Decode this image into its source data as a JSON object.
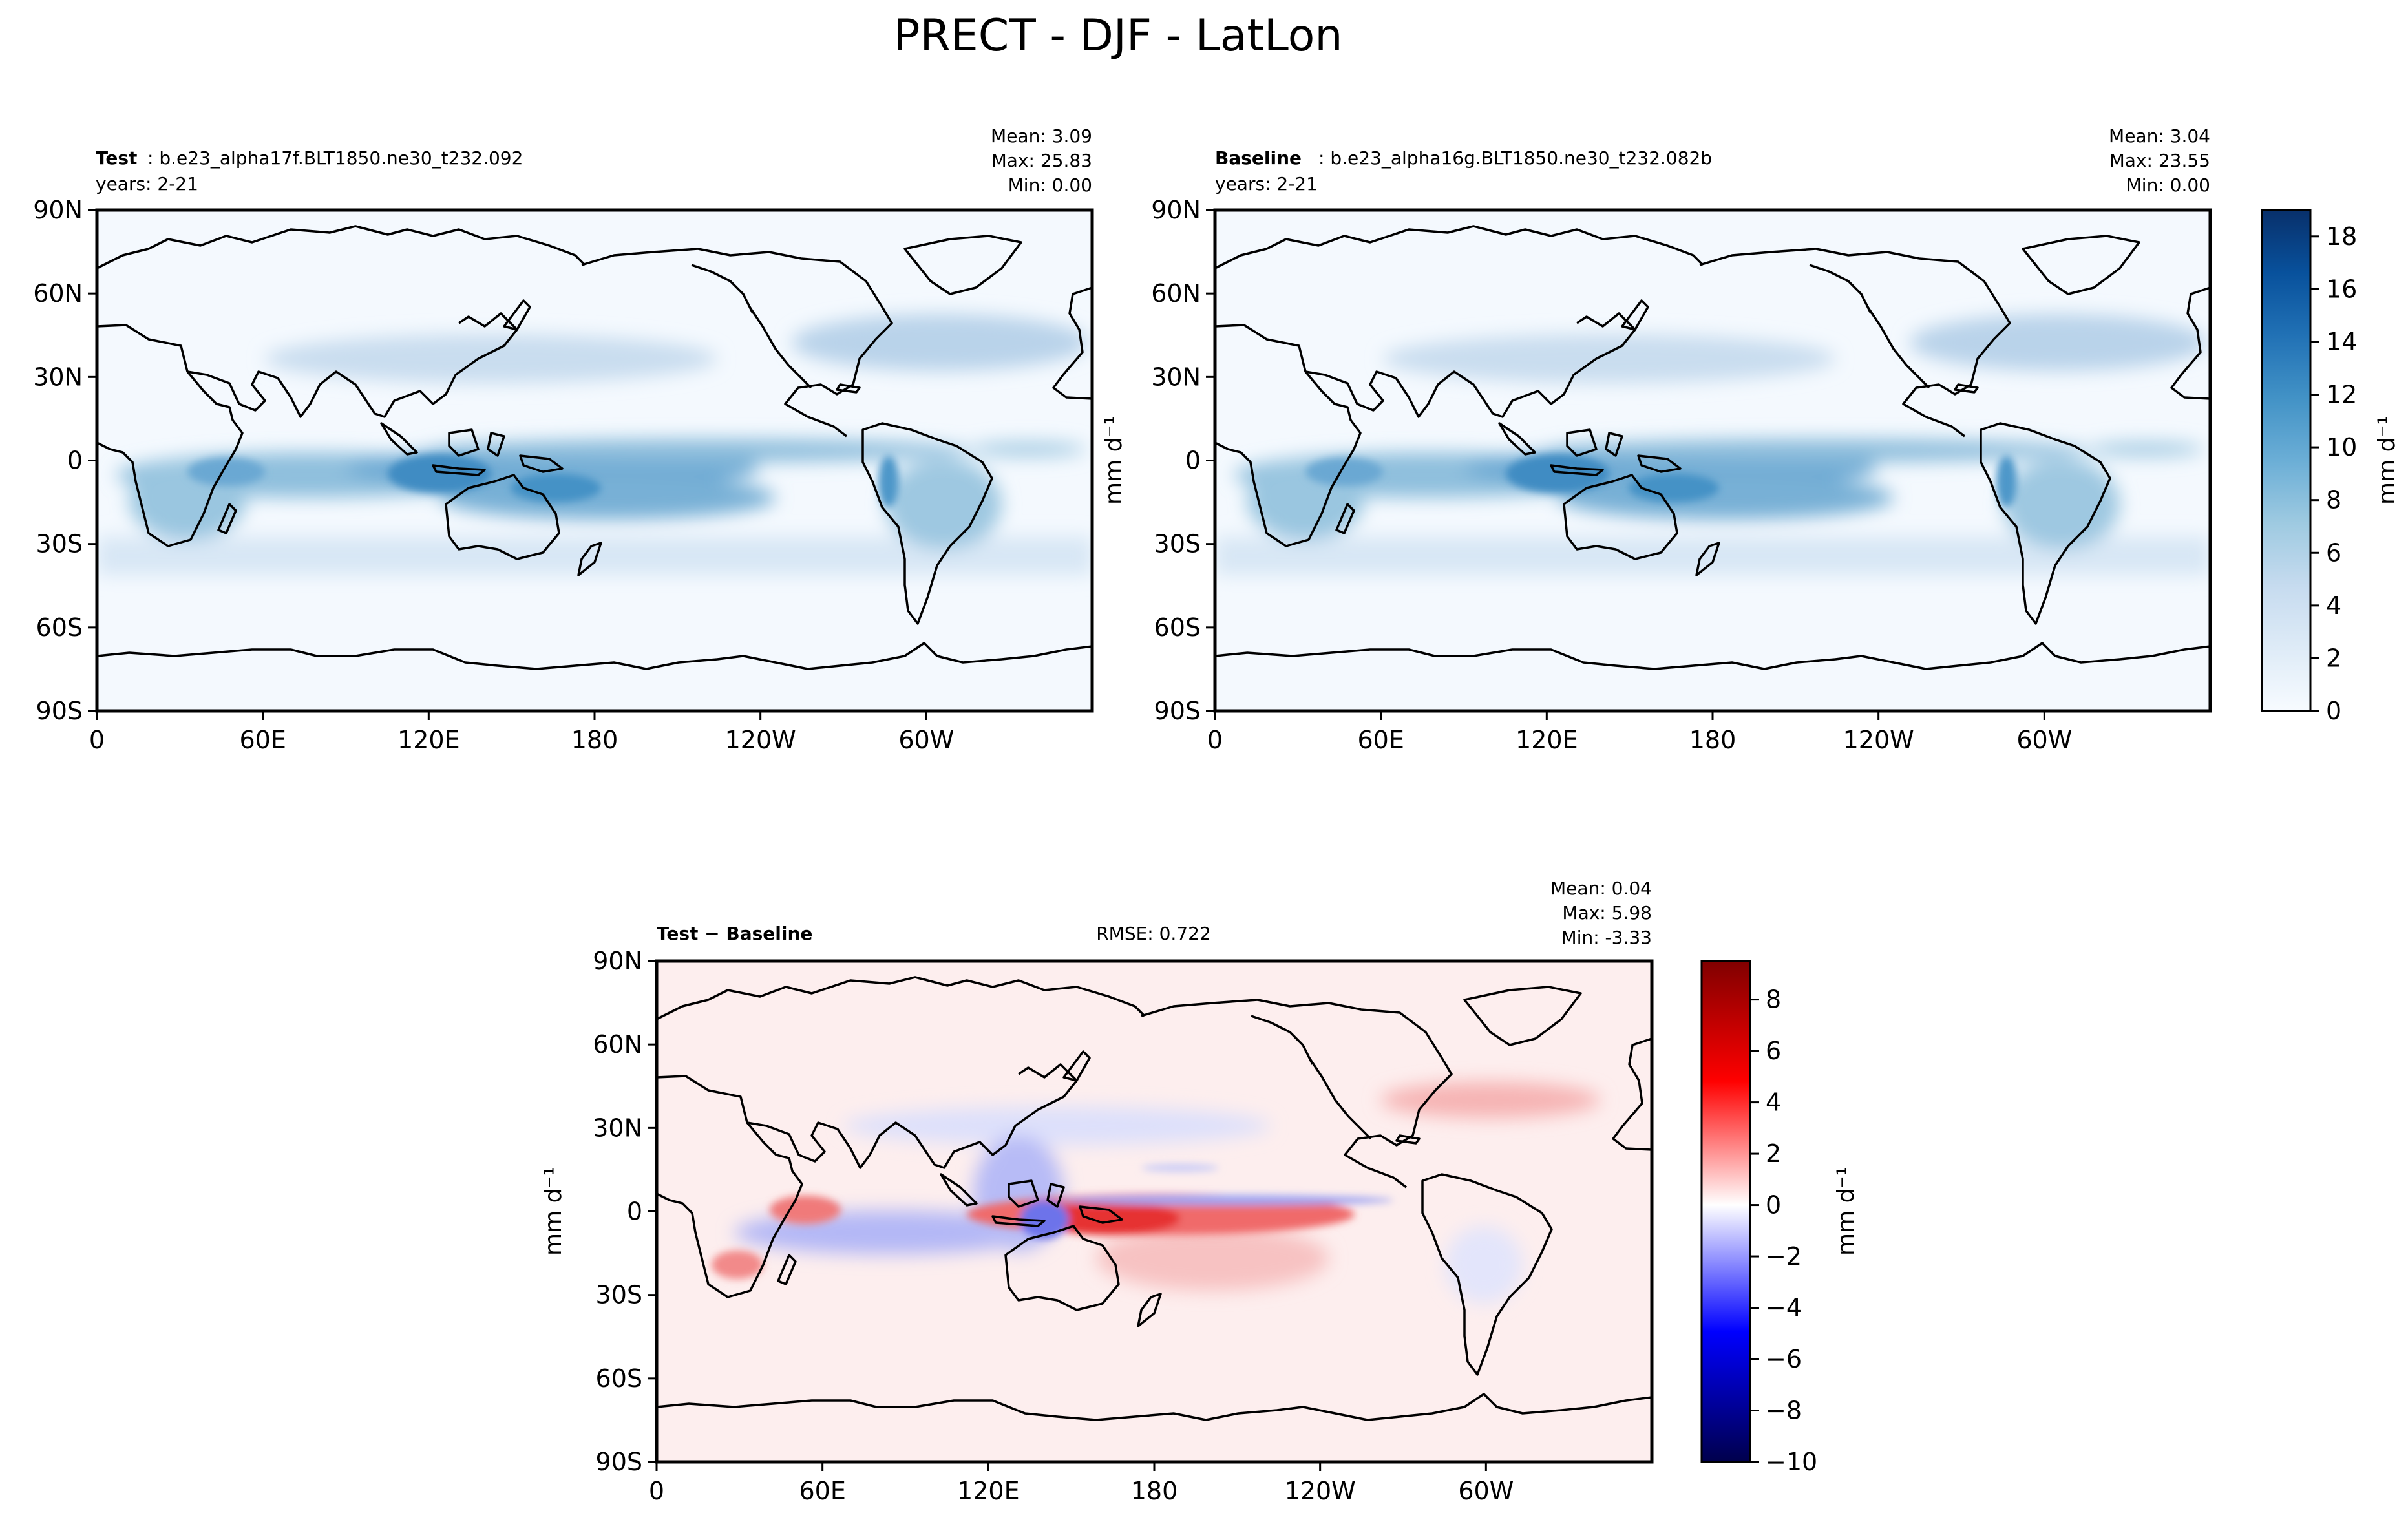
{
  "figure": {
    "title": "PRECT - DJF - LatLon"
  },
  "chart_data": [
    {
      "type": "heatmap",
      "panel": "test",
      "label_bold": "Test",
      "label_rest": " : b.e23_alpha17f.BLT1850.ne30_t232.092",
      "years": "years: 2-21",
      "stats": {
        "mean": "Mean:  3.09",
        "max": "Max: 25.83",
        "min": "Min:  0.00"
      },
      "x_ticks": [
        "0",
        "60E",
        "120E",
        "180",
        "120W",
        "60W"
      ],
      "x_values": [
        0,
        60,
        120,
        180,
        240,
        300
      ],
      "y_ticks": [
        "90N",
        "60N",
        "30N",
        "0",
        "30S",
        "60S",
        "90S"
      ],
      "y_values": [
        90,
        60,
        30,
        0,
        -30,
        -60,
        -90
      ],
      "xlim": [
        0,
        360
      ],
      "ylim": [
        -90,
        90
      ],
      "ylabel": "mm d⁻¹"
    },
    {
      "type": "heatmap",
      "panel": "baseline",
      "label_bold": "Baseline",
      "label_rest": " : b.e23_alpha16g.BLT1850.ne30_t232.082b",
      "years": "years: 2-21",
      "stats": {
        "mean": "Mean:  3.04",
        "max": "Max: 23.55",
        "min": "Min:  0.00"
      },
      "x_ticks": [
        "0",
        "60E",
        "120E",
        "180",
        "120W",
        "60W"
      ],
      "x_values": [
        0,
        60,
        120,
        180,
        240,
        300
      ],
      "y_ticks": [
        "90N",
        "60N",
        "30N",
        "0",
        "30S",
        "60S",
        "90S"
      ],
      "y_values": [
        90,
        60,
        30,
        0,
        -30,
        -60,
        -90
      ],
      "xlim": [
        0,
        360
      ],
      "ylim": [
        -90,
        90
      ],
      "ylabel": "mm d⁻¹"
    },
    {
      "type": "heatmap",
      "panel": "diff",
      "label_bold": "Test − Baseline",
      "rmse": "RMSE: 0.722",
      "stats": {
        "mean": "Mean:  0.04",
        "max": "Max:  5.98",
        "min": "Min: -3.33"
      },
      "x_ticks": [
        "0",
        "60E",
        "120E",
        "180",
        "120W",
        "60W"
      ],
      "x_values": [
        0,
        60,
        120,
        180,
        240,
        300
      ],
      "y_ticks": [
        "90N",
        "60N",
        "30N",
        "0",
        "30S",
        "60S",
        "90S"
      ],
      "y_values": [
        90,
        60,
        30,
        0,
        -30,
        -60,
        -90
      ],
      "xlim": [
        0,
        360
      ],
      "ylim": [
        -90,
        90
      ],
      "ylabel": "mm d⁻¹"
    }
  ],
  "colorbars": {
    "blues": {
      "ticks": [
        "0",
        "2",
        "4",
        "6",
        "8",
        "10",
        "12",
        "14",
        "16",
        "18"
      ],
      "values": [
        0,
        2,
        4,
        6,
        8,
        10,
        12,
        14,
        16,
        18
      ],
      "range": [
        0,
        19
      ],
      "label": "mm d⁻¹",
      "colors": [
        "#f7fbff",
        "#deebf7",
        "#c6dbef",
        "#9ecae1",
        "#6baed6",
        "#4292c6",
        "#2171b5",
        "#08519c",
        "#08306b"
      ]
    },
    "diff": {
      "ticks": [
        "−10",
        "−8",
        "−6",
        "−4",
        "−2",
        "0",
        "2",
        "4",
        "6",
        "8"
      ],
      "values": [
        -10,
        -8,
        -6,
        -4,
        -2,
        0,
        2,
        4,
        6,
        8
      ],
      "range": [
        -10,
        9.5
      ],
      "label": "mm d⁻¹",
      "colors": [
        "#00004c",
        "#0000ff",
        "#ffffff",
        "#ff0000",
        "#800000"
      ]
    }
  }
}
